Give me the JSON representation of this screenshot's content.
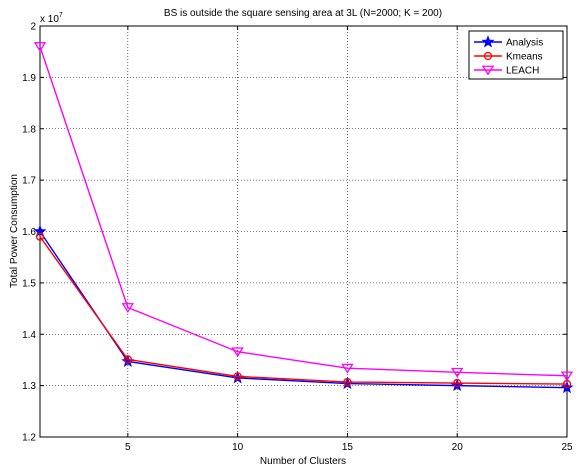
{
  "chart_data": {
    "type": "line",
    "title": "BS is outside the square sensing area at 3L (N=2000; K = 200)",
    "xlabel": "Number of Clusters",
    "ylabel": "Total Power Consumption",
    "y_multiplier": "x 10",
    "y_exponent": "7",
    "xlim": [
      1,
      25
    ],
    "ylim": [
      1.2,
      2.0
    ],
    "xticks": [
      5,
      10,
      15,
      20,
      25
    ],
    "yticks": [
      1.2,
      1.3,
      1.4,
      1.5,
      1.6,
      1.7,
      1.8,
      1.9,
      2
    ],
    "grid": true,
    "legend_position": "top-right",
    "x": [
      1,
      5,
      10,
      15,
      20,
      25
    ],
    "series": [
      {
        "name": "Analysis",
        "color": "#0000ff",
        "marker": "star",
        "values": [
          1.6,
          1.347,
          1.315,
          1.304,
          1.3,
          1.296
        ]
      },
      {
        "name": "Kmeans",
        "color": "#ff0000",
        "marker": "circle",
        "values": [
          1.59,
          1.351,
          1.318,
          1.307,
          1.305,
          1.303
        ]
      },
      {
        "name": "LEACH",
        "color": "#ff00ff",
        "marker": "triangle-down",
        "values": [
          1.96,
          1.452,
          1.366,
          1.334,
          1.326,
          1.319
        ]
      }
    ]
  }
}
